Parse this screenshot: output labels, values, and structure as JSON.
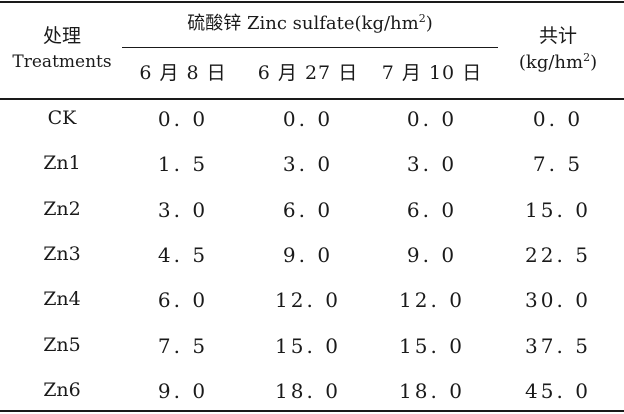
{
  "header": {
    "treatment_cn": "处理",
    "treatment_en": "Treatments",
    "group_label_pre": "硫酸锌 Zinc sulfate(kg/hm",
    "group_label_sup": "2",
    "group_label_post": ")",
    "total_cn": "共计",
    "total_unit_pre": "(kg/hm",
    "total_unit_sup": "2",
    "total_unit_post": ")",
    "dates": [
      "6 月 8 日",
      "6 月 27 日",
      "7 月 10 日"
    ]
  },
  "rows": [
    {
      "treatment": "CK",
      "d1": "0. 0",
      "d2": "0. 0",
      "d3": "0. 0",
      "total": "0. 0"
    },
    {
      "treatment": "Zn1",
      "d1": "1. 5",
      "d2": "3. 0",
      "d3": "3. 0",
      "total": "7. 5"
    },
    {
      "treatment": "Zn2",
      "d1": "3. 0",
      "d2": "6. 0",
      "d3": "6. 0",
      "total": "15. 0"
    },
    {
      "treatment": "Zn3",
      "d1": "4. 5",
      "d2": "9. 0",
      "d3": "9. 0",
      "total": "22. 5"
    },
    {
      "treatment": "Zn4",
      "d1": "6. 0",
      "d2": "12. 0",
      "d3": "12. 0",
      "total": "30. 0"
    },
    {
      "treatment": "Zn5",
      "d1": "7. 5",
      "d2": "15. 0",
      "d3": "15. 0",
      "total": "37. 5"
    },
    {
      "treatment": "Zn6",
      "d1": "9. 0",
      "d2": "18. 0",
      "d3": "18. 0",
      "total": "45. 0"
    }
  ]
}
